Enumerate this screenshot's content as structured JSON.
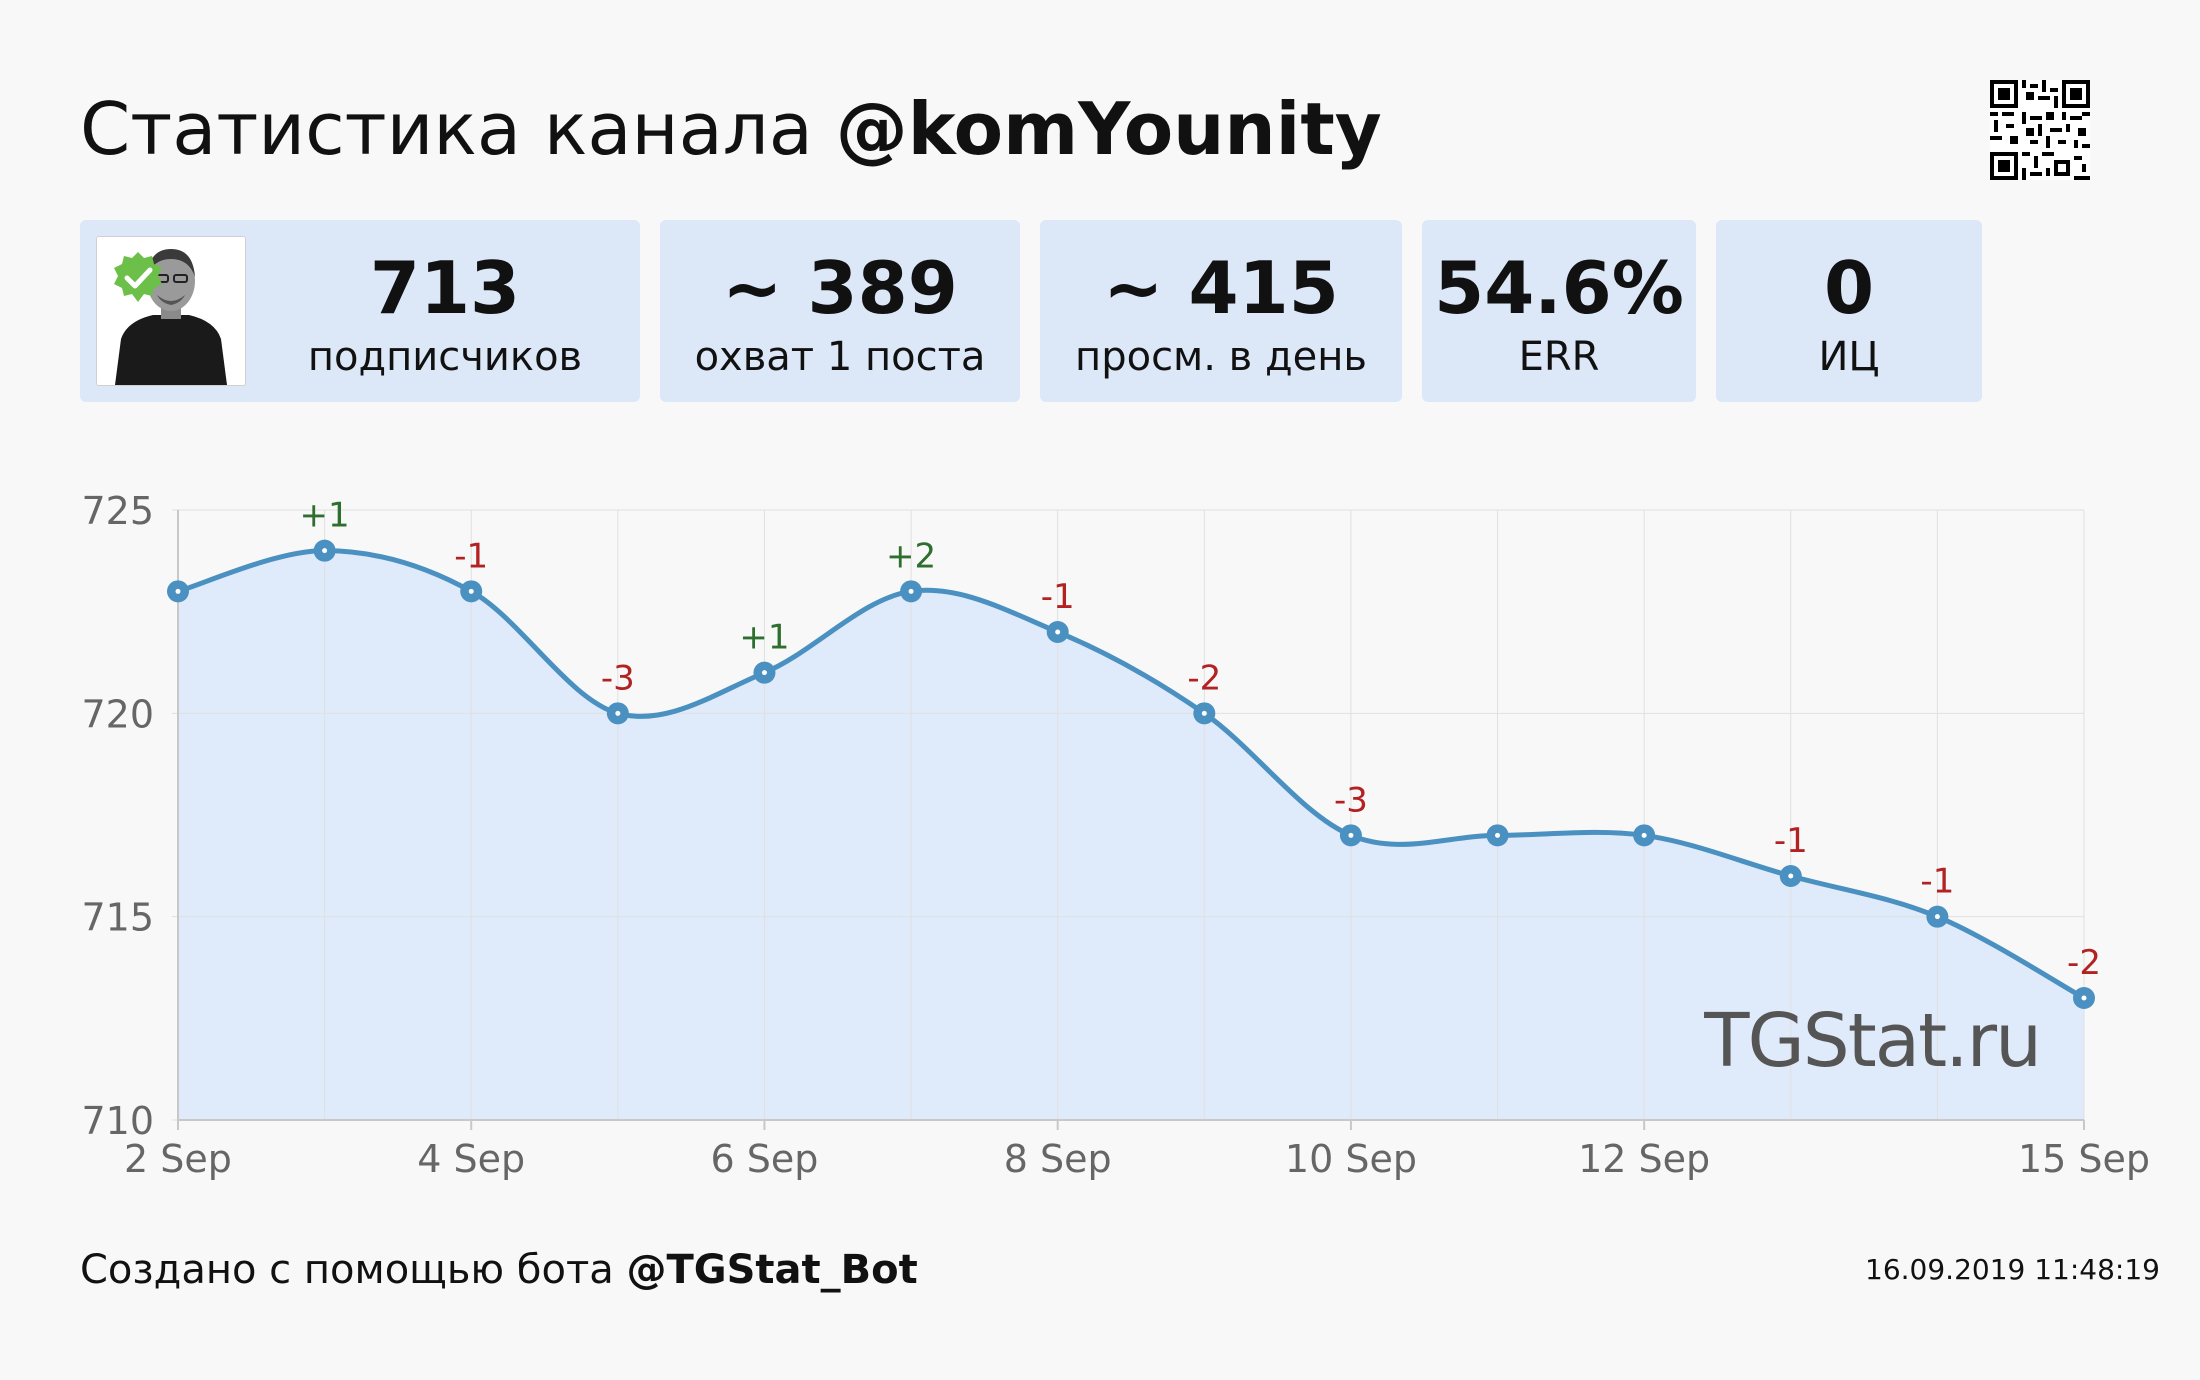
{
  "header": {
    "title_prefix": "Статистика канала",
    "channel": "@komYounity"
  },
  "stats": {
    "subscribers": {
      "value": "713",
      "label": "подписчиков"
    },
    "reach": {
      "value": "~ 389",
      "label": "охват 1 поста"
    },
    "daily_views": {
      "value": "~ 415",
      "label": "просм. в день"
    },
    "err": {
      "value": "54.6%",
      "label": "ERR"
    },
    "ic": {
      "value": "0",
      "label": "ИЦ"
    }
  },
  "chart_data": {
    "type": "line",
    "x": [
      "2 Sep",
      "3 Sep",
      "4 Sep",
      "5 Sep",
      "6 Sep",
      "7 Sep",
      "8 Sep",
      "9 Sep",
      "10 Sep",
      "11 Sep",
      "12 Sep",
      "13 Sep",
      "14 Sep",
      "15 Sep"
    ],
    "values": [
      723,
      724,
      723,
      720,
      721,
      723,
      722,
      720,
      717,
      717,
      717,
      716,
      715,
      713
    ],
    "point_labels": [
      "",
      "+1",
      "-1",
      "-3",
      "+1",
      "+2",
      "-1",
      "-2",
      "-3",
      "",
      "",
      "-1",
      "-1",
      "-2"
    ],
    "xticks": [
      "2 Sep",
      "4 Sep",
      "6 Sep",
      "8 Sep",
      "10 Sep",
      "12 Sep",
      "15 Sep"
    ],
    "yticks": [
      "710",
      "715",
      "720",
      "725"
    ],
    "ylim": [
      710,
      725
    ],
    "grid": true,
    "watermark": "TGStat.ru",
    "colors": {
      "line": "#4a90c0",
      "fill": "#dfeafa",
      "positive": "#2e6e2e",
      "negative": "#b22222"
    }
  },
  "footer": {
    "prefix": "Создано с помощью бота",
    "bot": "@TGStat_Bot",
    "timestamp": "16.09.2019 11:48:19"
  }
}
